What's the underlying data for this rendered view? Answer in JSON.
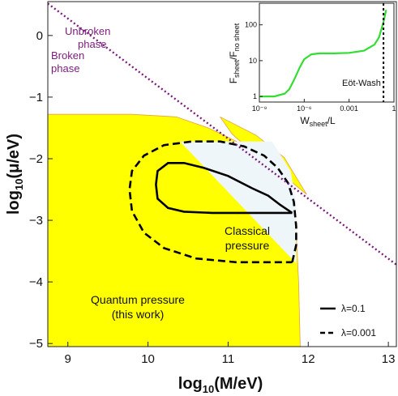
{
  "chart_data": [
    {
      "type": "area",
      "title": "",
      "xlabel": "log10(M/eV)",
      "ylabel": "log10(μ/eV)",
      "xlim": [
        8.75,
        13.1
      ],
      "ylim": [
        -5.05,
        0.55
      ],
      "x_ticks": [
        9,
        10,
        11,
        12,
        13
      ],
      "y_ticks": [
        0,
        -1,
        -2,
        -3,
        -4,
        -5
      ],
      "grid": false,
      "legend_position": "bottom-right",
      "colors": {
        "quantum_fill": "#ffff00",
        "quantum_edge": "#e8a040",
        "classical_fill": "#eef6fa",
        "phase_line": "#7b1b7b",
        "contours": "#000000"
      },
      "regions": [
        {
          "name": "Quantum pressure",
          "note": "(this work)",
          "polygon": [
            [
              8.75,
              -1.28
            ],
            [
              9.8,
              -1.28
            ],
            [
              10.35,
              -1.32
            ],
            [
              10.75,
              -1.5
            ],
            [
              10.95,
              -1.62
            ],
            [
              11.2,
              -1.78
            ],
            [
              11.45,
              -2.0
            ],
            [
              11.65,
              -2.3
            ],
            [
              11.8,
              -2.72
            ],
            [
              11.85,
              -3.2
            ],
            [
              11.88,
              -4.0
            ],
            [
              11.9,
              -5.05
            ],
            [
              8.75,
              -5.05
            ]
          ]
        },
        {
          "name": "upper wedge",
          "polygon": [
            [
              10.9,
              -1.32
            ],
            [
              11.35,
              -1.62
            ],
            [
              11.7,
              -1.98
            ],
            [
              11.98,
              -2.58
            ],
            [
              11.72,
              -2.3
            ],
            [
              11.35,
              -1.95
            ],
            [
              11.05,
              -1.6
            ]
          ]
        },
        {
          "name": "Classical pressure",
          "polygon": [
            [
              10.4,
              -1.72
            ],
            [
              11.55,
              -1.72
            ],
            [
              11.78,
              -2.2
            ],
            [
              11.85,
              -2.7
            ],
            [
              11.85,
              -3.7
            ]
          ]
        }
      ],
      "phase_boundary": {
        "label_above": [
          "Unbroken",
          "phase"
        ],
        "label_below": [
          "Broken",
          "phase"
        ],
        "x": [
          8.75,
          13.1
        ],
        "y": [
          0.52,
          -3.72
        ]
      },
      "series": [
        {
          "name": "λ=0.1",
          "style": "solid",
          "x": [
            11.8,
            11.65,
            11.5,
            11.3,
            11.0,
            10.7,
            10.45,
            10.25,
            10.12,
            10.1,
            10.12,
            10.25,
            10.45,
            10.8,
            11.2,
            11.8
          ],
          "y": [
            -2.88,
            -2.75,
            -2.6,
            -2.48,
            -2.28,
            -2.15,
            -2.07,
            -2.07,
            -2.2,
            -2.42,
            -2.65,
            -2.8,
            -2.86,
            -2.88,
            -2.88,
            -2.88
          ]
        },
        {
          "name": "λ=0.001",
          "style": "dashed",
          "x": [
            11.8,
            11.85,
            11.85,
            11.82,
            11.75,
            11.62,
            11.45,
            11.2,
            10.9,
            10.55,
            10.2,
            9.95,
            9.8,
            9.77,
            9.8,
            9.95,
            10.2,
            10.6,
            11.1,
            11.6,
            11.8
          ],
          "y": [
            -3.68,
            -3.4,
            -3.1,
            -2.7,
            -2.4,
            -2.15,
            -1.95,
            -1.8,
            -1.72,
            -1.72,
            -1.78,
            -1.95,
            -2.2,
            -2.5,
            -2.85,
            -3.2,
            -3.45,
            -3.62,
            -3.68,
            -3.68,
            -3.68
          ]
        }
      ]
    },
    {
      "type": "line",
      "title": "",
      "xlabel": "W_sheet/L",
      "ylabel": "F_sheet/F_no sheet",
      "x_scale": "log",
      "y_scale": "log",
      "xlim": [
        1e-09,
        1
      ],
      "ylim": [
        0.7,
        400
      ],
      "x_ticks": [
        "10⁻⁹",
        "10⁻⁶",
        "0.001",
        "1"
      ],
      "y_ticks": [
        "1",
        "10",
        "100"
      ],
      "annotation": "Eöt-Wash",
      "marker_line_x": 0.2,
      "series": [
        {
          "color": "#33dd33",
          "x": [
            1e-09,
            1e-08,
            5e-08,
            1e-07,
            2e-07,
            5e-07,
            1e-06,
            3e-06,
            1e-05,
            0.0001,
            0.001,
            0.01,
            0.05,
            0.1,
            0.2,
            0.3
          ],
          "y": [
            1.0,
            1.0,
            1.2,
            1.6,
            2.8,
            6.5,
            11,
            15,
            16,
            16,
            16.5,
            19,
            28,
            45,
            120,
            260
          ]
        }
      ]
    }
  ],
  "main_labels": {
    "unbroken_1": "Unbroken",
    "unbroken_2": "phase",
    "broken_1": "Broken",
    "broken_2": "phase",
    "classical_1": "Classical",
    "classical_2": "pressure",
    "quantum_1": "Quantum pressure",
    "quantum_2": "(this work)",
    "xtitle_pre": "log",
    "xtitle_sub": "10",
    "xtitle_post": "(M/eV)",
    "ytitle_pre": "log",
    "ytitle_sub": "10",
    "ytitle_post": "(μ/eV)",
    "legend_1": "λ=0.1",
    "legend_2": "λ=0.001"
  },
  "inset_labels": {
    "ylabel_F": "F",
    "ylabel_sub1": "sheet",
    "ylabel_slash": "/F",
    "ylabel_sub2": "no sheet",
    "xlabel_W": "W",
    "xlabel_sub": "sheet",
    "xlabel_rest": "/L",
    "note": "Eöt-Wash"
  }
}
